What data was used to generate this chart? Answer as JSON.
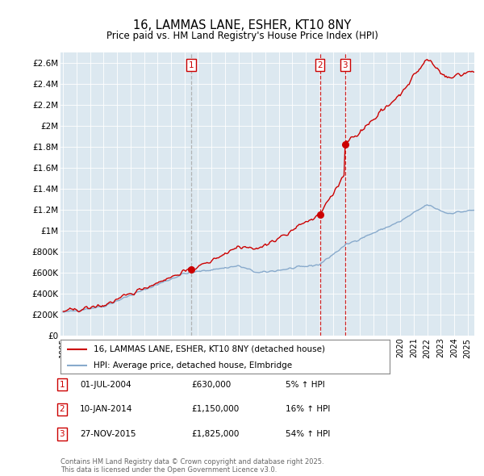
{
  "title": "16, LAMMAS LANE, ESHER, KT10 8NY",
  "subtitle": "Price paid vs. HM Land Registry's House Price Index (HPI)",
  "ylabel_ticks": [
    "£0",
    "£200K",
    "£400K",
    "£600K",
    "£800K",
    "£1M",
    "£1.2M",
    "£1.4M",
    "£1.6M",
    "£1.8M",
    "£2M",
    "£2.2M",
    "£2.4M",
    "£2.6M"
  ],
  "ytick_values": [
    0,
    200000,
    400000,
    600000,
    800000,
    1000000,
    1200000,
    1400000,
    1600000,
    1800000,
    2000000,
    2200000,
    2400000,
    2600000
  ],
  "ylim": [
    0,
    2700000
  ],
  "xlim_start": 1994.8,
  "xlim_end": 2025.5,
  "sale_dates": [
    2004.5,
    2014.04,
    2015.92
  ],
  "sale_prices": [
    630000,
    1150000,
    1825000
  ],
  "sale_labels": [
    "1",
    "2",
    "3"
  ],
  "sale1_vline_color": "#aaaaaa",
  "sale23_vline_color": "#cc0000",
  "property_color": "#cc0000",
  "hpi_color": "#88aacc",
  "chart_bg_color": "#dce8f0",
  "legend_property": "16, LAMMAS LANE, ESHER, KT10 8NY (detached house)",
  "legend_hpi": "HPI: Average price, detached house, Elmbridge",
  "transaction_rows": [
    {
      "label": "1",
      "date": "01-JUL-2004",
      "price": "£630,000",
      "change": "5% ↑ HPI"
    },
    {
      "label": "2",
      "date": "10-JAN-2014",
      "price": "£1,150,000",
      "change": "16% ↑ HPI"
    },
    {
      "label": "3",
      "date": "27-NOV-2015",
      "price": "£1,825,000",
      "change": "54% ↑ HPI"
    }
  ],
  "footer": "Contains HM Land Registry data © Crown copyright and database right 2025.\nThis data is licensed under the Open Government Licence v3.0.",
  "background_color": "#ffffff",
  "grid_color": "#ffffff"
}
